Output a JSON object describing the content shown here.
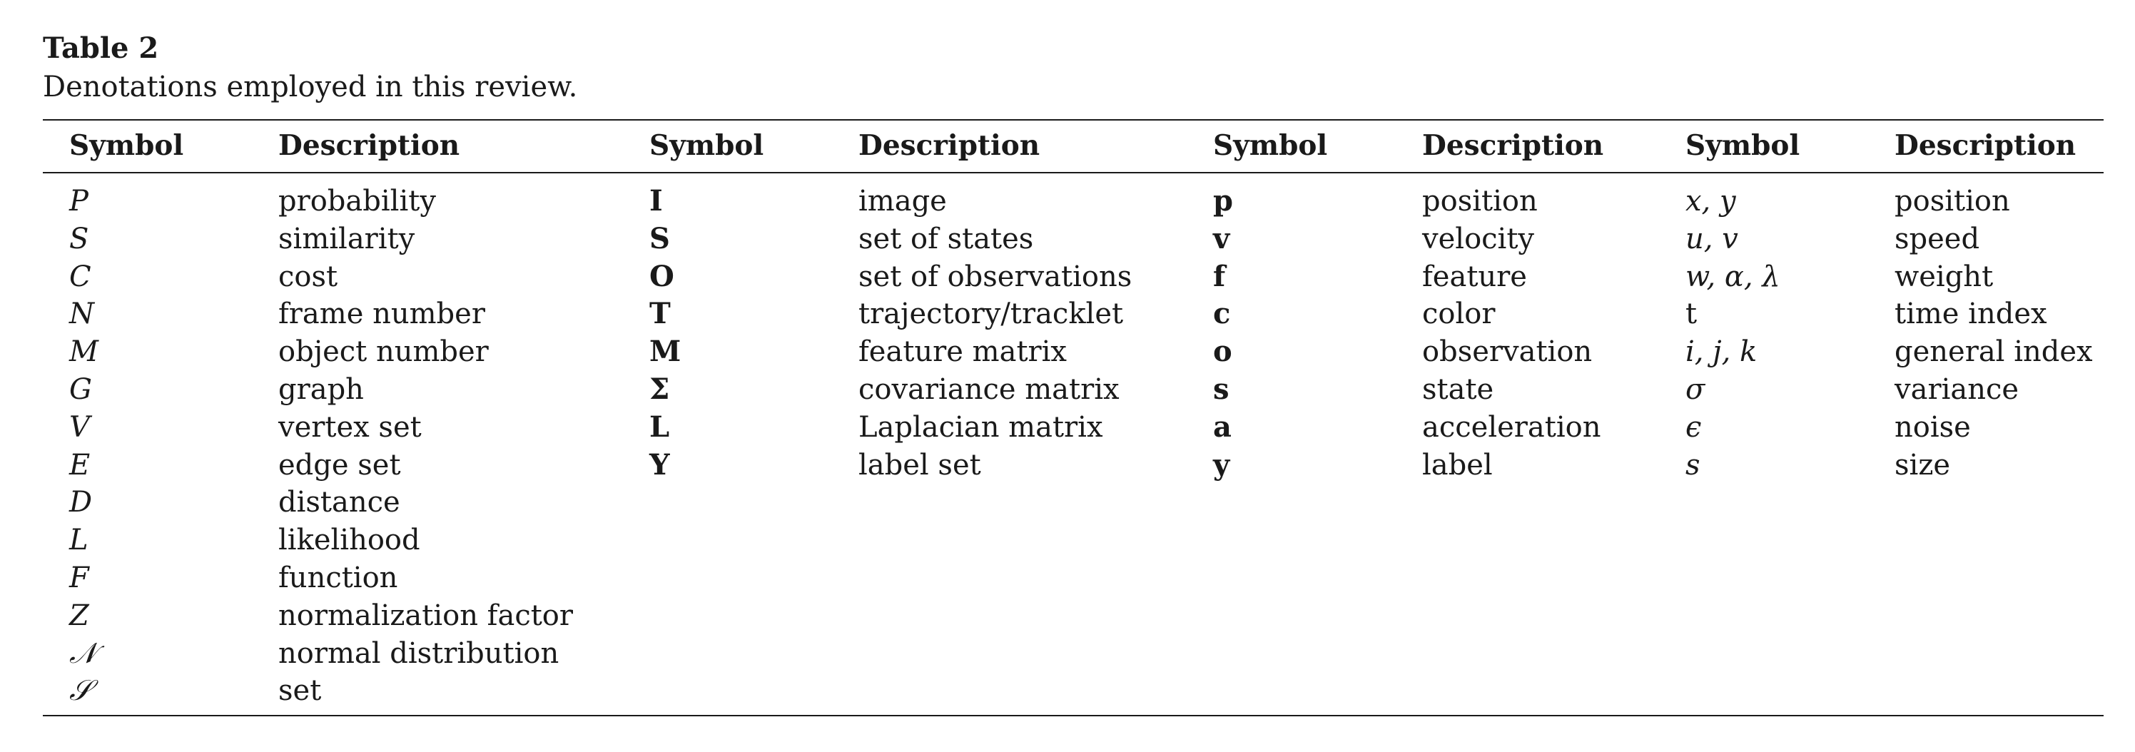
{
  "caption": {
    "title": "Table 2",
    "text": "Denotations employed in this review."
  },
  "headers": {
    "symbol": "Symbol",
    "description": "Description"
  },
  "groups": [
    {
      "style": "italic",
      "rows": [
        {
          "symbol": "P",
          "description": "probability"
        },
        {
          "symbol": "S",
          "description": "similarity"
        },
        {
          "symbol": "C",
          "description": "cost"
        },
        {
          "symbol": "N",
          "description": "frame number"
        },
        {
          "symbol": "M",
          "description": "object number"
        },
        {
          "symbol": "G",
          "description": "graph"
        },
        {
          "symbol": "V",
          "description": "vertex set"
        },
        {
          "symbol": "E",
          "description": "edge set"
        },
        {
          "symbol": "D",
          "description": "distance"
        },
        {
          "symbol": "L",
          "description": "likelihood"
        },
        {
          "symbol": "F",
          "description": "function"
        },
        {
          "symbol": "Z",
          "description": "normalization factor"
        },
        {
          "symbol": "𝒩",
          "description": "normal distribution"
        },
        {
          "symbol": "𝒮",
          "description": "set"
        }
      ]
    },
    {
      "style": "bold",
      "rows": [
        {
          "symbol": "I",
          "description": "image"
        },
        {
          "symbol": "S",
          "description": "set of states"
        },
        {
          "symbol": "O",
          "description": "set of observations"
        },
        {
          "symbol": "T",
          "description": "trajectory/tracklet"
        },
        {
          "symbol": "M",
          "description": "feature matrix"
        },
        {
          "symbol": "Σ",
          "description": "covariance matrix"
        },
        {
          "symbol": "L",
          "description": "Laplacian matrix"
        },
        {
          "symbol": "Y",
          "description": "label set"
        }
      ]
    },
    {
      "style": "bold",
      "rows": [
        {
          "symbol": "p",
          "description": "position"
        },
        {
          "symbol": "v",
          "description": "velocity"
        },
        {
          "symbol": "f",
          "description": "feature"
        },
        {
          "symbol": "c",
          "description": "color"
        },
        {
          "symbol": "o",
          "description": "observation"
        },
        {
          "symbol": "s",
          "description": "state"
        },
        {
          "symbol": "a",
          "description": "acceleration"
        },
        {
          "symbol": "y",
          "description": "label"
        }
      ]
    },
    {
      "style": "italic",
      "rows": [
        {
          "symbol": "x, y",
          "description": "position"
        },
        {
          "symbol": "u, v",
          "description": "speed"
        },
        {
          "symbol": "w, α, λ",
          "description": "weight"
        },
        {
          "symbol": "t",
          "description": "time index",
          "plain": true
        },
        {
          "symbol": "i, j, k",
          "description": "general index"
        },
        {
          "symbol": "σ",
          "description": "variance"
        },
        {
          "symbol": "ϵ",
          "description": "noise"
        },
        {
          "symbol": "s",
          "description": "size"
        }
      ]
    }
  ]
}
